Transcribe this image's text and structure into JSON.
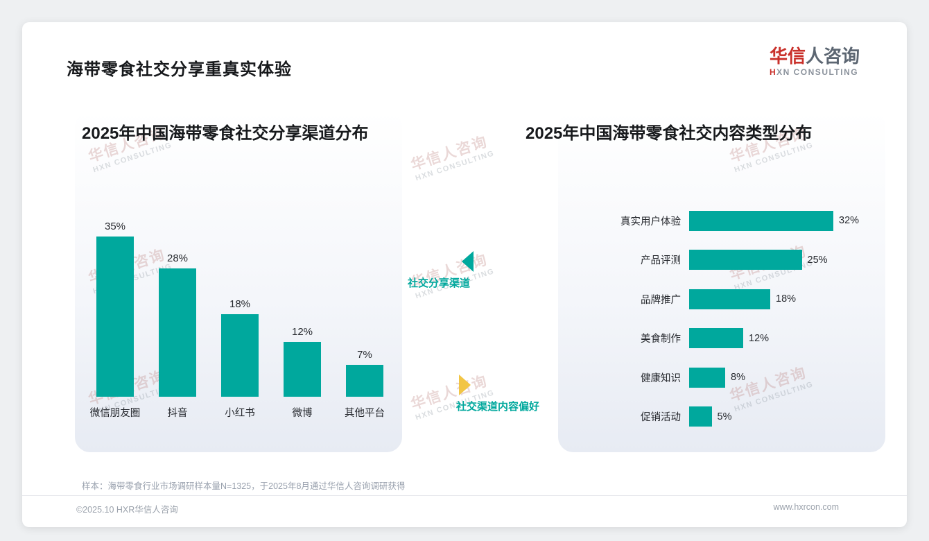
{
  "header": {
    "title": "海带零食社交分享重真实体验",
    "logo": {
      "brand_red": "华信",
      "brand_rest": "人咨询",
      "tagline_red": "H",
      "tagline_rest": "XN CONSULTING"
    }
  },
  "chart_data": [
    {
      "type": "bar",
      "orientation": "vertical",
      "title": "2025年中国海带零食社交分享渠道分布",
      "categories": [
        "微信朋友圈",
        "抖音",
        "小红书",
        "微博",
        "其他平台"
      ],
      "values": [
        35,
        28,
        18,
        12,
        7
      ],
      "unit": "%",
      "ylim": [
        0,
        40
      ],
      "grid": false,
      "legend": "none"
    },
    {
      "type": "bar",
      "orientation": "horizontal",
      "title": "2025年中国海带零食社交内容类型分布",
      "categories": [
        "真实用户体验",
        "产品评测",
        "品牌推广",
        "美食制作",
        "健康知识",
        "促销活动"
      ],
      "values": [
        32,
        25,
        18,
        12,
        8,
        5
      ],
      "unit": "%",
      "xlim": [
        0,
        35
      ],
      "grid": false,
      "legend": "none"
    }
  ],
  "annotations": {
    "top": {
      "label": "社交分享渠道"
    },
    "bottom": {
      "label": "社交渠道内容偏好"
    }
  },
  "note": "样本：海带零食行业市场调研样本量N=1325，于2025年8月通过华信人咨询调研获得",
  "footer": {
    "left": "©2025.10 HXR华信人咨询",
    "right": "www.hxrcon.com"
  },
  "watermark": {
    "line1": "华信人咨询",
    "line2": "HXN CONSULTING"
  },
  "colors": {
    "accent_teal": "#00a89d",
    "arrow_yellow": "#f2c545",
    "brand_red": "#c9302a",
    "panel_bottom": "#e7ebf3"
  },
  "icons": {
    "left_arrow": "triangle-left-icon",
    "right_arrow": "triangle-right-icon"
  }
}
